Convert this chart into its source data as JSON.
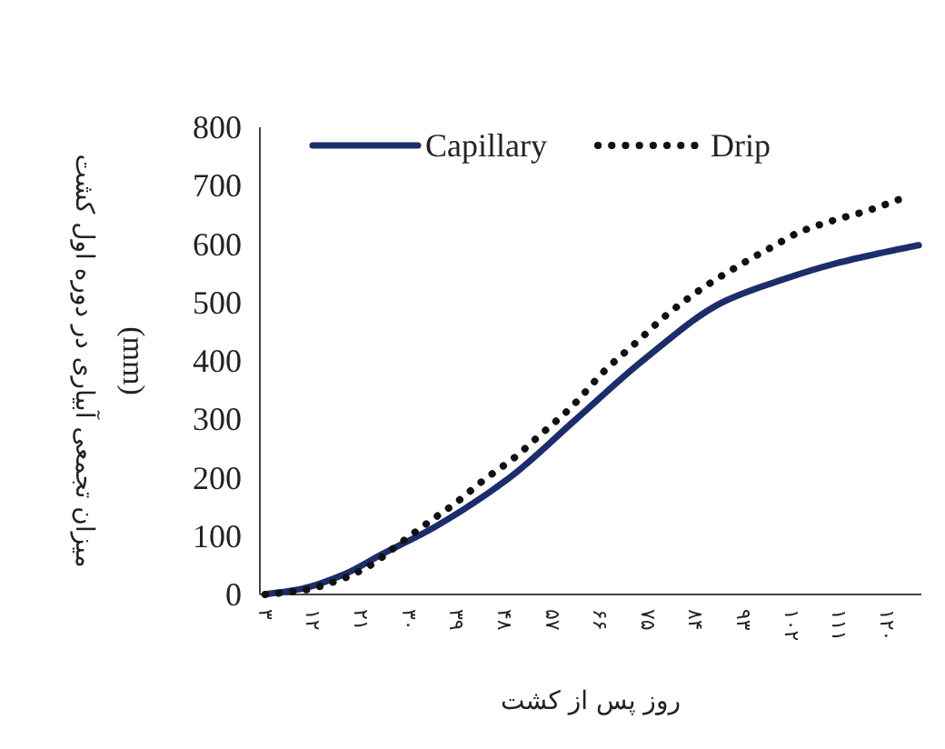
{
  "chart_data": {
    "type": "line",
    "xlabel": "روز پس از کشت",
    "ylabel": "میزان تجمعی آبیاری در دوره اول کشت (mm)",
    "xlim": [
      2,
      126.5
    ],
    "ylim": [
      0,
      800
    ],
    "xticks": [
      {
        "value": 3,
        "label": "۳"
      },
      {
        "value": 12,
        "label": "۱۲"
      },
      {
        "value": 21,
        "label": "۲۱"
      },
      {
        "value": 30,
        "label": "۳۰"
      },
      {
        "value": 39,
        "label": "۳۹"
      },
      {
        "value": 48,
        "label": "۴۸"
      },
      {
        "value": 57,
        "label": "۵۷"
      },
      {
        "value": 66,
        "label": "۶۶"
      },
      {
        "value": 75,
        "label": "۷۵"
      },
      {
        "value": 84,
        "label": "۸۴"
      },
      {
        "value": 93,
        "label": "۹۳"
      },
      {
        "value": 102,
        "label": "۱۰۲"
      },
      {
        "value": 111,
        "label": "۱۱۱"
      },
      {
        "value": 120,
        "label": "۱۲۰"
      }
    ],
    "yticks": [
      0,
      100,
      200,
      300,
      400,
      500,
      600,
      700,
      800
    ],
    "grid": false,
    "legend": "top",
    "marker": "none",
    "series": [
      {
        "name": "Capillary",
        "color": "#1c2d6b",
        "line_style": "solid",
        "x": [
          3,
          10,
          18,
          25,
          35,
          49,
          61.5,
          74,
          89,
          101,
          110.5,
          118.5,
          126
        ],
        "values": [
          0,
          10,
          35,
          69,
          116,
          200,
          300,
          400,
          500,
          541,
          567,
          584,
          598
        ]
      },
      {
        "name": "Drip",
        "color": "#111111",
        "line_style": "dotted",
        "x": [
          3,
          10,
          17,
          22.6,
          28.3,
          34.1,
          38.6,
          44.3,
          50,
          54.6,
          60.3,
          67.1,
          72.9,
          78.6,
          85.4,
          92.3,
          98,
          103.7,
          110.5,
          116.3,
          123.7
        ],
        "values": [
          0,
          7,
          25,
          49,
          87,
          126,
          155,
          197,
          235,
          272,
          318,
          385,
          432,
          479,
          525,
          564,
          593,
          621,
          642,
          657,
          681
        ]
      }
    ]
  }
}
